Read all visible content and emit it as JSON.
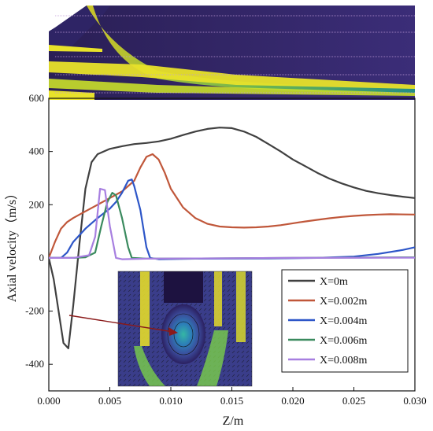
{
  "chart_data": {
    "type": "line",
    "xlabel": "Z/m",
    "ylabel": "Axial velocity（m/s）",
    "xlim": [
      0,
      0.03
    ],
    "ylim": [
      -500,
      600
    ],
    "x_ticks": [
      "0.000",
      "0.005",
      "0.010",
      "0.015",
      "0.020",
      "0.025",
      "0.030"
    ],
    "y_ticks": [
      "-400",
      "-200",
      "0",
      "200",
      "400",
      "600"
    ],
    "legend_position": "bottom-right",
    "grid": false,
    "series": [
      {
        "name": "X=0m",
        "color": "#404040",
        "points": [
          [
            0,
            0
          ],
          [
            0.0004,
            -80
          ],
          [
            0.0008,
            -200
          ],
          [
            0.0012,
            -320
          ],
          [
            0.0016,
            -340
          ],
          [
            0.002,
            -180
          ],
          [
            0.0025,
            50
          ],
          [
            0.003,
            260
          ],
          [
            0.0035,
            360
          ],
          [
            0.004,
            390
          ],
          [
            0.005,
            410
          ],
          [
            0.006,
            420
          ],
          [
            0.007,
            428
          ],
          [
            0.008,
            432
          ],
          [
            0.009,
            438
          ],
          [
            0.01,
            448
          ],
          [
            0.011,
            462
          ],
          [
            0.012,
            475
          ],
          [
            0.013,
            485
          ],
          [
            0.014,
            490
          ],
          [
            0.015,
            488
          ],
          [
            0.016,
            475
          ],
          [
            0.017,
            455
          ],
          [
            0.018,
            428
          ],
          [
            0.019,
            400
          ],
          [
            0.02,
            370
          ],
          [
            0.021,
            345
          ],
          [
            0.022,
            320
          ],
          [
            0.023,
            298
          ],
          [
            0.024,
            280
          ],
          [
            0.025,
            265
          ],
          [
            0.026,
            252
          ],
          [
            0.027,
            243
          ],
          [
            0.028,
            236
          ],
          [
            0.029,
            230
          ],
          [
            0.03,
            225
          ]
        ]
      },
      {
        "name": "X=0.002m",
        "color": "#c0573a",
        "points": [
          [
            0,
            0
          ],
          [
            0.0005,
            60
          ],
          [
            0.001,
            110
          ],
          [
            0.0015,
            135
          ],
          [
            0.002,
            150
          ],
          [
            0.003,
            175
          ],
          [
            0.004,
            200
          ],
          [
            0.005,
            225
          ],
          [
            0.006,
            250
          ],
          [
            0.007,
            290
          ],
          [
            0.0075,
            340
          ],
          [
            0.008,
            380
          ],
          [
            0.0085,
            390
          ],
          [
            0.009,
            370
          ],
          [
            0.0095,
            320
          ],
          [
            0.01,
            260
          ],
          [
            0.011,
            190
          ],
          [
            0.012,
            150
          ],
          [
            0.013,
            128
          ],
          [
            0.014,
            118
          ],
          [
            0.015,
            115
          ],
          [
            0.016,
            114
          ],
          [
            0.017,
            115
          ],
          [
            0.018,
            118
          ],
          [
            0.019,
            123
          ],
          [
            0.02,
            130
          ],
          [
            0.021,
            137
          ],
          [
            0.022,
            143
          ],
          [
            0.023,
            149
          ],
          [
            0.024,
            154
          ],
          [
            0.025,
            158
          ],
          [
            0.026,
            161
          ],
          [
            0.027,
            163
          ],
          [
            0.028,
            164
          ],
          [
            0.03,
            163
          ]
        ]
      },
      {
        "name": "X=0.004m",
        "color": "#2d56c8",
        "points": [
          [
            0,
            0
          ],
          [
            0.001,
            0
          ],
          [
            0.0015,
            20
          ],
          [
            0.002,
            60
          ],
          [
            0.003,
            110
          ],
          [
            0.004,
            150
          ],
          [
            0.005,
            185
          ],
          [
            0.0055,
            210
          ],
          [
            0.006,
            245
          ],
          [
            0.0065,
            290
          ],
          [
            0.0068,
            295
          ],
          [
            0.007,
            270
          ],
          [
            0.0075,
            180
          ],
          [
            0.008,
            40
          ],
          [
            0.0083,
            0
          ],
          [
            0.009,
            -5
          ],
          [
            0.012,
            -3
          ],
          [
            0.018,
            -2
          ],
          [
            0.022,
            0
          ],
          [
            0.025,
            5
          ],
          [
            0.027,
            15
          ],
          [
            0.029,
            30
          ],
          [
            0.03,
            40
          ]
        ]
      },
      {
        "name": "X=0.006m",
        "color": "#3a8a5e",
        "points": [
          [
            0,
            0
          ],
          [
            0.002,
            0
          ],
          [
            0.003,
            2
          ],
          [
            0.0038,
            20
          ],
          [
            0.0043,
            120
          ],
          [
            0.0048,
            210
          ],
          [
            0.0052,
            245
          ],
          [
            0.0055,
            235
          ],
          [
            0.006,
            150
          ],
          [
            0.0065,
            40
          ],
          [
            0.0068,
            0
          ],
          [
            0.008,
            -3
          ],
          [
            0.012,
            -2
          ],
          [
            0.02,
            0
          ],
          [
            0.03,
            2
          ]
        ]
      },
      {
        "name": "X=0.008m",
        "color": "#a77fe0",
        "points": [
          [
            0,
            0
          ],
          [
            0.002,
            0
          ],
          [
            0.0033,
            10
          ],
          [
            0.0038,
            80
          ],
          [
            0.0042,
            260
          ],
          [
            0.0046,
            255
          ],
          [
            0.005,
            120
          ],
          [
            0.0055,
            0
          ],
          [
            0.006,
            -5
          ],
          [
            0.008,
            -3
          ],
          [
            0.012,
            -2
          ],
          [
            0.02,
            0
          ],
          [
            0.03,
            1
          ]
        ]
      }
    ],
    "inset_annotation": "arrow from X=0m minimum to vortex inset"
  }
}
